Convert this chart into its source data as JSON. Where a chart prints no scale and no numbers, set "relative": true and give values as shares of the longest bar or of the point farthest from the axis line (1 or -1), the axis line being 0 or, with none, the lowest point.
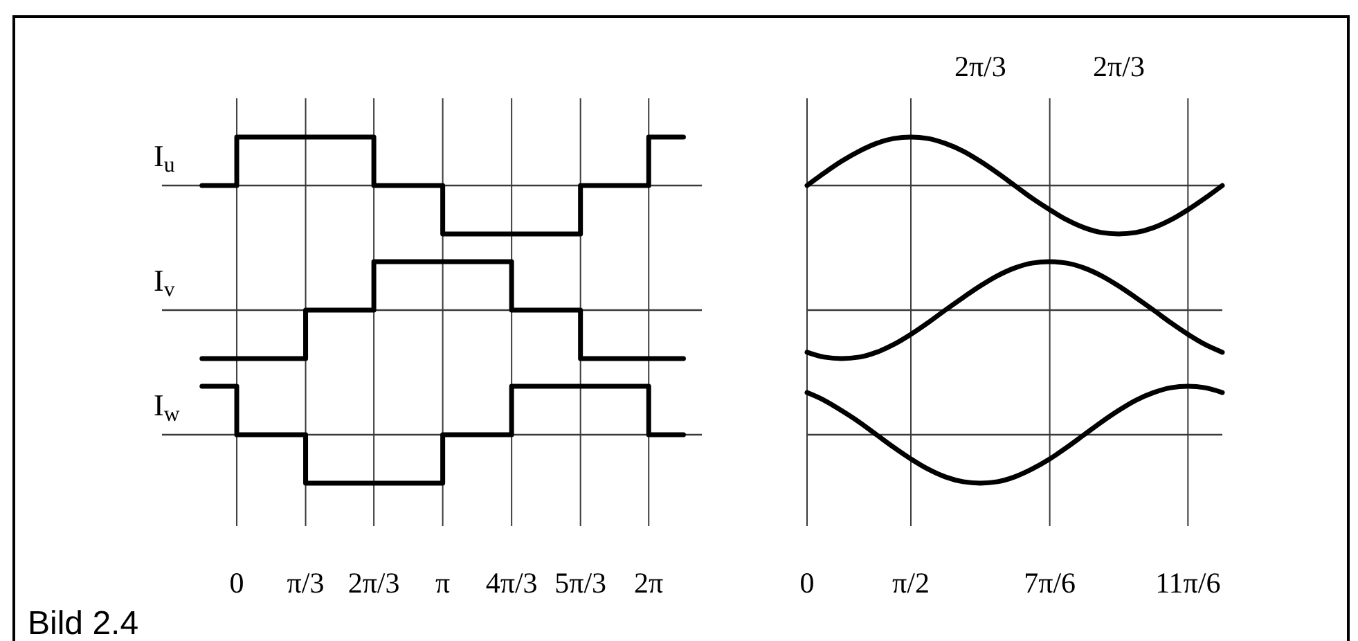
{
  "chart_data": [
    {
      "type": "step",
      "ylabel": "I$_{u}$",
      "x": [
        -0.53,
        0,
        2.09,
        3.14,
        5.24,
        6.28,
        6.81
      ],
      "values": [
        0,
        1,
        0,
        -1,
        0,
        1,
        1
      ],
      "color": "#000000",
      "relative": true,
      "xlim": [
        -1.14,
        7.09
      ],
      "xticks": [
        {
          "value": 0,
          "label": null
        },
        {
          "value": 1.05,
          "label": null
        },
        {
          "value": 2.09,
          "label": null
        },
        {
          "value": 3.14,
          "label": null
        },
        {
          "value": 4.19,
          "label": null
        },
        {
          "value": 5.24,
          "label": null
        },
        {
          "value": 6.28,
          "label": null
        }
      ],
      "grid": "x",
      "tick_labels": false
    },
    {
      "type": "step",
      "ylabel": "I$_{v}$",
      "x": [
        -0.53,
        1.05,
        2.09,
        4.19,
        5.24,
        6.81
      ],
      "values": [
        -1,
        0,
        1,
        0,
        -1,
        -1
      ],
      "color": "#000000",
      "relative": true,
      "xlim": [
        -1.14,
        7.09
      ],
      "xticks": [
        {
          "value": 0,
          "label": null
        },
        {
          "value": 1.05,
          "label": null
        },
        {
          "value": 2.09,
          "label": null
        },
        {
          "value": 3.14,
          "label": null
        },
        {
          "value": 4.19,
          "label": null
        },
        {
          "value": 5.24,
          "label": null
        },
        {
          "value": 6.28,
          "label": null
        }
      ],
      "grid": "x",
      "tick_labels": false
    },
    {
      "type": "step",
      "ylabel": "I$_{w}$",
      "x": [
        -0.53,
        0,
        1.05,
        3.14,
        4.19,
        6.28,
        6.81
      ],
      "values": [
        1,
        0,
        -1,
        0,
        1,
        0,
        0
      ],
      "color": "#000000",
      "relative": true,
      "xlim": [
        -1.14,
        7.09
      ],
      "xticks": [
        0,
        {
          "value": 1.05,
          "label": "π/3"
        },
        {
          "value": 2.09,
          "label": "2π/3"
        },
        {
          "value": 3.14,
          "label": "π"
        },
        {
          "value": 4.19,
          "label": "4π/3"
        },
        {
          "value": 5.24,
          "label": "5π/3"
        },
        {
          "value": 6.28,
          "label": "2π"
        }
      ],
      "grid": "x",
      "tick_labels": "x",
      "annotations": [
        "Bild 2.4"
      ]
    },
    {
      "type": "line",
      "x": [
        0,
        0.26,
        0.52,
        0.79,
        1.05,
        1.31,
        1.57,
        1.83,
        2.09,
        2.36,
        2.62,
        2.88,
        3.14,
        3.4,
        3.67,
        3.93,
        4.19,
        4.45,
        4.71,
        4.97,
        5.24,
        5.5,
        5.76,
        6.02,
        6.28
      ],
      "values": [
        0,
        0.26,
        0.5,
        0.71,
        0.87,
        0.97,
        1,
        0.97,
        0.87,
        0.71,
        0.5,
        0.26,
        0,
        -0.26,
        -0.5,
        -0.71,
        -0.87,
        -0.97,
        -1,
        -0.97,
        -0.87,
        -0.71,
        -0.5,
        -0.26,
        0
      ],
      "color": "#000000",
      "relative": true,
      "xlim": [
        0,
        6.28
      ],
      "xticks": [
        {
          "value": 0,
          "label": null
        },
        {
          "value": 1.57,
          "label": null
        },
        {
          "value": 3.67,
          "label": null
        },
        {
          "value": 5.76,
          "label": null
        }
      ],
      "grid": "x",
      "tick_labels": false,
      "annotations": [
        "2π/3",
        "2π/3"
      ]
    },
    {
      "type": "line",
      "x": [
        0,
        0.26,
        0.52,
        0.79,
        1.05,
        1.31,
        1.57,
        1.83,
        2.09,
        2.36,
        2.62,
        2.88,
        3.14,
        3.4,
        3.67,
        3.93,
        4.19,
        4.45,
        4.71,
        4.97,
        5.24,
        5.5,
        5.76,
        6.02,
        6.28
      ],
      "values": [
        -0.87,
        -0.97,
        -1,
        -0.97,
        -0.87,
        -0.71,
        -0.5,
        -0.26,
        0,
        0.26,
        0.5,
        0.71,
        0.87,
        0.97,
        1,
        0.97,
        0.87,
        0.71,
        0.5,
        0.26,
        0,
        -0.26,
        -0.5,
        -0.71,
        -0.87
      ],
      "color": "#000000",
      "relative": true,
      "xlim": [
        0,
        6.28
      ],
      "xticks": [
        {
          "value": 0,
          "label": null
        },
        {
          "value": 1.57,
          "label": null
        },
        {
          "value": 3.67,
          "label": null
        },
        {
          "value": 5.76,
          "label": null
        }
      ],
      "grid": "x",
      "tick_labels": false
    },
    {
      "type": "line",
      "x": [
        0,
        0.26,
        0.52,
        0.79,
        1.05,
        1.31,
        1.57,
        1.83,
        2.09,
        2.36,
        2.62,
        2.88,
        3.14,
        3.4,
        3.67,
        3.93,
        4.19,
        4.45,
        4.71,
        4.97,
        5.24,
        5.5,
        5.76,
        6.02,
        6.28
      ],
      "values": [
        0.87,
        0.71,
        0.5,
        0.26,
        0,
        -0.26,
        -0.5,
        -0.71,
        -0.87,
        -0.97,
        -1,
        -0.97,
        -0.87,
        -0.71,
        -0.5,
        -0.26,
        0,
        0.26,
        0.5,
        0.71,
        0.87,
        0.97,
        1,
        0.97,
        0.87
      ],
      "color": "#000000",
      "relative": true,
      "xlim": [
        0,
        6.28
      ],
      "xticks": [
        0,
        {
          "value": 1.57,
          "label": "π/2"
        },
        {
          "value": 3.67,
          "label": "7π/6"
        },
        {
          "value": 5.76,
          "label": "11π/6"
        }
      ],
      "grid": "x",
      "tick_labels": "x"
    }
  ]
}
